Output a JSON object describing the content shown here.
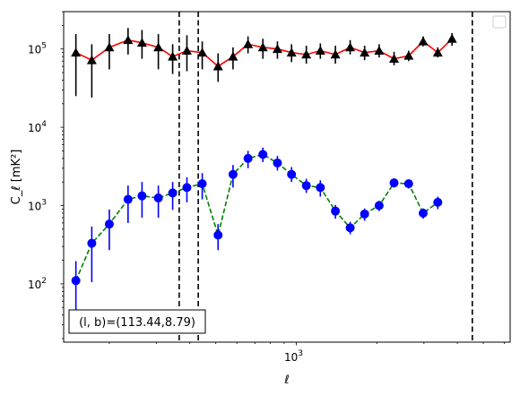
{
  "chart_data": {
    "type": "scatter",
    "title": "",
    "xlabel": "ℓ",
    "ylabel": "C_ℓ [mK²]",
    "xscale": "log",
    "yscale": "log",
    "xlim": [
      135,
      6300
    ],
    "ylim": [
      18,
      300000
    ],
    "x_ticks": [
      {
        "value": 1000,
        "label_base": "10",
        "label_exp": "3"
      }
    ],
    "y_ticks": [
      {
        "value": 100,
        "label_base": "10",
        "label_exp": "2"
      },
      {
        "value": 1000,
        "label_base": "10",
        "label_exp": "3"
      },
      {
        "value": 10000,
        "label_base": "10",
        "label_exp": "4"
      },
      {
        "value": 100000,
        "label_base": "10",
        "label_exp": "5"
      }
    ],
    "legend": {
      "placement": "top-right",
      "entries": []
    },
    "annotation": "(l, b)=(113.44,8.79)",
    "vlines": [
      365,
      430,
      4550
    ],
    "series": [
      {
        "marker": "triangle",
        "marker_color": "#000000",
        "line_color": "#ff0000",
        "linestyle": "solid",
        "points": [
          {
            "x": 150,
            "y": 90000,
            "lo": 25000,
            "hi": 155000
          },
          {
            "x": 172,
            "y": 72000,
            "lo": 24000,
            "hi": 115000
          },
          {
            "x": 200,
            "y": 105000,
            "lo": 55000,
            "hi": 155000
          },
          {
            "x": 235,
            "y": 130000,
            "lo": 85000,
            "hi": 185000
          },
          {
            "x": 265,
            "y": 120000,
            "lo": 75000,
            "hi": 175000
          },
          {
            "x": 305,
            "y": 105000,
            "lo": 55000,
            "hi": 155000
          },
          {
            "x": 345,
            "y": 80000,
            "lo": 48000,
            "hi": 115000
          },
          {
            "x": 390,
            "y": 95000,
            "lo": 52000,
            "hi": 150000
          },
          {
            "x": 445,
            "y": 90000,
            "lo": 55000,
            "hi": 125000
          },
          {
            "x": 510,
            "y": 60000,
            "lo": 38000,
            "hi": 88000
          },
          {
            "x": 580,
            "y": 80000,
            "lo": 55000,
            "hi": 105000
          },
          {
            "x": 660,
            "y": 115000,
            "lo": 88000,
            "hi": 145000
          },
          {
            "x": 750,
            "y": 105000,
            "lo": 75000,
            "hi": 135000
          },
          {
            "x": 850,
            "y": 100000,
            "lo": 75000,
            "hi": 125000
          },
          {
            "x": 960,
            "y": 90000,
            "lo": 68000,
            "hi": 115000
          },
          {
            "x": 1090,
            "y": 85000,
            "lo": 65000,
            "hi": 110000
          },
          {
            "x": 1230,
            "y": 95000,
            "lo": 75000,
            "hi": 118000
          },
          {
            "x": 1400,
            "y": 85000,
            "lo": 65000,
            "hi": 110000
          },
          {
            "x": 1590,
            "y": 105000,
            "lo": 85000,
            "hi": 130000
          },
          {
            "x": 1800,
            "y": 90000,
            "lo": 72000,
            "hi": 110000
          },
          {
            "x": 2040,
            "y": 95000,
            "lo": 78000,
            "hi": 115000
          },
          {
            "x": 2320,
            "y": 75000,
            "lo": 62000,
            "hi": 92000
          },
          {
            "x": 2630,
            "y": 82000,
            "lo": 70000,
            "hi": 95000
          },
          {
            "x": 2980,
            "y": 125000,
            "lo": 108000,
            "hi": 145000
          },
          {
            "x": 3380,
            "y": 90000,
            "lo": 78000,
            "hi": 105000
          },
          {
            "x": 3820,
            "y": 135000,
            "lo": 110000,
            "hi": 160000
          }
        ]
      },
      {
        "marker": "circle",
        "marker_color": "#0000ff",
        "line_color": "#008000",
        "linestyle": "dashed",
        "points": [
          {
            "x": 150,
            "y": 110,
            "lo": 42,
            "hi": 195
          },
          {
            "x": 172,
            "y": 330,
            "lo": 105,
            "hi": 540
          },
          {
            "x": 200,
            "y": 580,
            "lo": 270,
            "hi": 890
          },
          {
            "x": 235,
            "y": 1200,
            "lo": 600,
            "hi": 1800
          },
          {
            "x": 265,
            "y": 1330,
            "lo": 700,
            "hi": 2000
          },
          {
            "x": 305,
            "y": 1250,
            "lo": 700,
            "hi": 1800
          },
          {
            "x": 345,
            "y": 1450,
            "lo": 880,
            "hi": 2000
          },
          {
            "x": 390,
            "y": 1700,
            "lo": 1100,
            "hi": 2300
          },
          {
            "x": 445,
            "y": 1900,
            "lo": 1200,
            "hi": 2600
          },
          {
            "x": 510,
            "y": 420,
            "lo": 270,
            "hi": 580
          },
          {
            "x": 580,
            "y": 2500,
            "lo": 1700,
            "hi": 3300
          },
          {
            "x": 660,
            "y": 4000,
            "lo": 3000,
            "hi": 5000
          },
          {
            "x": 750,
            "y": 4500,
            "lo": 3600,
            "hi": 5500
          },
          {
            "x": 850,
            "y": 3500,
            "lo": 2800,
            "hi": 4300
          },
          {
            "x": 960,
            "y": 2500,
            "lo": 2000,
            "hi": 3100
          },
          {
            "x": 1090,
            "y": 1800,
            "lo": 1450,
            "hi": 2200
          },
          {
            "x": 1230,
            "y": 1700,
            "lo": 1300,
            "hi": 2100
          },
          {
            "x": 1400,
            "y": 850,
            "lo": 680,
            "hi": 1020
          },
          {
            "x": 1590,
            "y": 520,
            "lo": 430,
            "hi": 620
          },
          {
            "x": 1800,
            "y": 780,
            "lo": 640,
            "hi": 920
          },
          {
            "x": 2040,
            "y": 1000,
            "lo": 850,
            "hi": 1150
          },
          {
            "x": 2320,
            "y": 1950,
            "lo": 1700,
            "hi": 2200
          },
          {
            "x": 2630,
            "y": 1900,
            "lo": 1650,
            "hi": 2150
          },
          {
            "x": 2980,
            "y": 800,
            "lo": 680,
            "hi": 920
          },
          {
            "x": 3380,
            "y": 1100,
            "lo": 900,
            "hi": 1300
          }
        ]
      }
    ]
  }
}
